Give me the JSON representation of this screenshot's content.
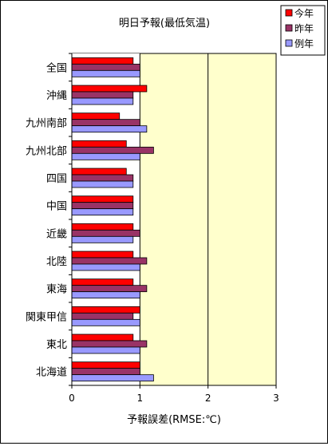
{
  "chart_data": {
    "type": "bar",
    "orientation": "horizontal",
    "title": "明日予報(最低気温)",
    "xlabel": "予報誤差(RMSE:℃)",
    "ylabel": "",
    "xlim": [
      0,
      3
    ],
    "xticks": [
      "0",
      "1",
      "2",
      "3"
    ],
    "grid": "vertical major gridlines",
    "legend_position": "top-right",
    "categories": [
      "全国",
      "沖縄",
      "九州南部",
      "九州北部",
      "四国",
      "中国",
      "近畿",
      "北陸",
      "東海",
      "関東甲信",
      "東北",
      "北海道"
    ],
    "series": [
      {
        "name": "今年",
        "color": "#ff0000",
        "values": [
          0.9,
          1.1,
          0.7,
          0.8,
          0.8,
          0.9,
          0.9,
          0.9,
          0.9,
          1.0,
          0.9,
          1.0
        ]
      },
      {
        "name": "昨年",
        "color": "#993366",
        "values": [
          1.0,
          0.9,
          1.0,
          1.2,
          0.9,
          0.9,
          1.0,
          1.1,
          1.1,
          0.9,
          1.1,
          1.0
        ]
      },
      {
        "name": "例年",
        "color": "#9999ff",
        "values": [
          1.0,
          0.9,
          1.1,
          1.0,
          0.9,
          0.9,
          0.9,
          1.0,
          1.0,
          1.0,
          1.0,
          1.2
        ]
      }
    ],
    "colors": {
      "plot_background": "#ffffcc",
      "frame_background": "#ffffff",
      "gridline": "#000000"
    }
  }
}
